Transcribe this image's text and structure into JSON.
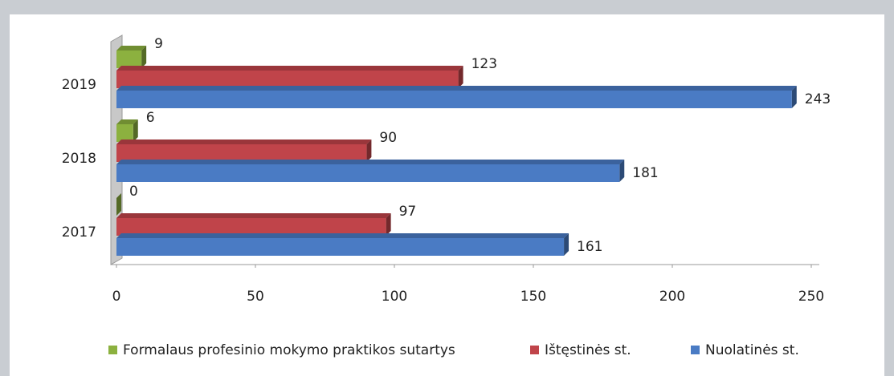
{
  "chart_data": {
    "type": "bar",
    "orientation": "horizontal",
    "categories": [
      "2017",
      "2018",
      "2019"
    ],
    "series": [
      {
        "name": "Formalaus profesinio mokymo praktikos sutartys",
        "color": "#8cb13f",
        "values": [
          0,
          6,
          9
        ]
      },
      {
        "name": "Ištęstinės st.",
        "color": "#c0444a",
        "values": [
          97,
          90,
          123
        ]
      },
      {
        "name": "Nuolatinės st.",
        "color": "#4a7bc4",
        "values": [
          161,
          181,
          243
        ]
      }
    ],
    "xlim": [
      0,
      250
    ],
    "xticks": [
      0,
      50,
      100,
      150,
      200,
      250
    ],
    "legend": "bottom"
  }
}
